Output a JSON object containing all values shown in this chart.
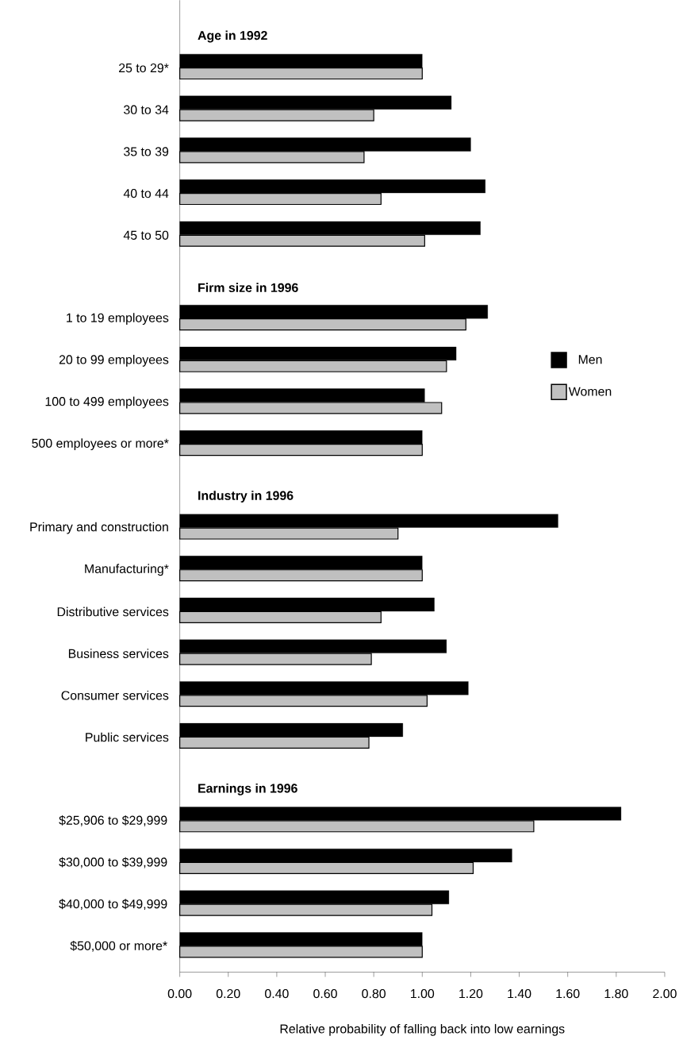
{
  "chart_data": [
    {
      "type": "bar",
      "orientation": "horizontal",
      "title": "Age in 1992",
      "categories": [
        "25 to 29*",
        "30 to 34",
        "35 to 39",
        "40 to 44",
        "45 to 50"
      ],
      "series": [
        {
          "color": "#000000",
          "values": [
            1.0,
            1.12,
            1.2,
            1.26,
            1.24
          ]
        },
        {
          "color": "#c0c0c0",
          "values": [
            1.0,
            0.8,
            0.76,
            0.83,
            1.01
          ]
        }
      ],
      "xlim": [
        0,
        2
      ],
      "tick_labels": "y"
    },
    {
      "type": "bar",
      "orientation": "horizontal",
      "title": "Firm size in 1996",
      "categories": [
        "1 to 19 employees",
        "20 to 99 employees",
        "100 to 499 employees",
        "500 employees or more*"
      ],
      "series": [
        {
          "name": "Men",
          "color": "#000000",
          "values": [
            1.27,
            1.14,
            1.01,
            1.0
          ]
        },
        {
          "name": "Women",
          "color": "#c0c0c0",
          "values": [
            1.18,
            1.1,
            1.08,
            1.0
          ]
        }
      ],
      "xlim": [
        0,
        2
      ],
      "tick_labels": "y",
      "legend": "right"
    },
    {
      "type": "bar",
      "orientation": "horizontal",
      "title": "Industry in 1996",
      "categories": [
        "Primary and construction",
        "Manufacturing*",
        "Distributive services",
        "Business services",
        "Consumer services",
        "Public services"
      ],
      "series": [
        {
          "color": "#000000",
          "values": [
            1.56,
            1.0,
            1.05,
            1.1,
            1.19,
            0.92
          ]
        },
        {
          "color": "#c0c0c0",
          "values": [
            0.9,
            1.0,
            0.83,
            0.79,
            1.02,
            0.78
          ]
        }
      ],
      "xlim": [
        0,
        2
      ],
      "tick_labels": "y"
    },
    {
      "type": "bar",
      "orientation": "horizontal",
      "title": "Earnings in 1996",
      "categories": [
        "$25,906 to $29,999",
        "$30,000 to $39,999",
        "$40,000 to $49,999",
        "$50,000 or more*"
      ],
      "xlabel": "Relative probability of falling back into low earnings",
      "series": [
        {
          "color": "#000000",
          "values": [
            1.82,
            1.37,
            1.11,
            1.0
          ]
        },
        {
          "color": "#c0c0c0",
          "values": [
            1.46,
            1.21,
            1.04,
            1.0
          ]
        }
      ],
      "xlim": [
        0,
        2
      ],
      "xticks": [
        {
          "value": 0,
          "label": "0.00"
        },
        {
          "value": 0.2,
          "label": "0.20"
        },
        {
          "value": 0.4,
          "label": "0.40"
        },
        {
          "value": 0.6,
          "label": "0.60"
        },
        {
          "value": 0.8,
          "label": "0.80"
        },
        {
          "value": 1.0,
          "label": "1.00"
        },
        {
          "value": 1.2,
          "label": "1.20"
        },
        {
          "value": 1.4,
          "label": "1.40"
        },
        {
          "value": 1.6,
          "label": "1.60"
        },
        {
          "value": 1.8,
          "label": "1.80"
        },
        {
          "value": 2.0,
          "label": "2.00"
        }
      ]
    }
  ]
}
